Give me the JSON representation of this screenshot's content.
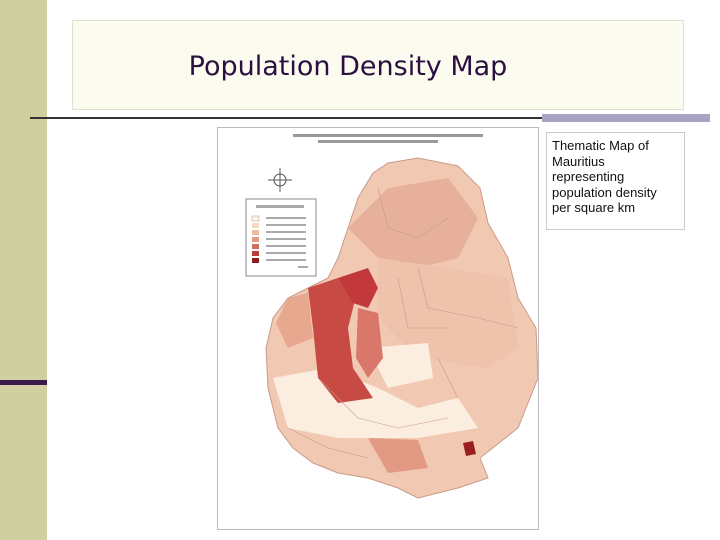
{
  "header": {
    "title": "Population Density Map"
  },
  "caption": {
    "lines": [
      "Thematic Map of",
      "Mauritius",
      "representing",
      "population density",
      "per square km"
    ]
  }
}
